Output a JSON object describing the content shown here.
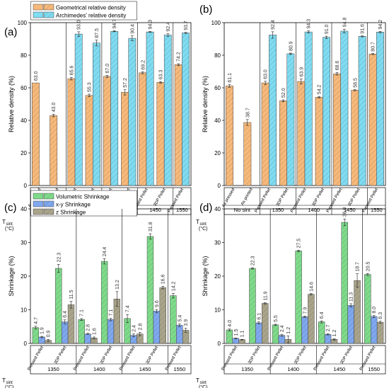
{
  "figure": {
    "panels": [
      {
        "letter": "(a)"
      },
      {
        "letter": "(b)"
      },
      {
        "letter": "(c)"
      },
      {
        "letter": "(d)"
      }
    ],
    "tsint_label": "T",
    "tsint_sub": "sint",
    "tsint_unit": "(°C)"
  },
  "colors": {
    "orange": "#F7B97A",
    "cyan": "#7FDCF2",
    "green": "#7EDB8A",
    "blue": "#7FA8F0",
    "khaki": "#A9A48A"
  },
  "chart_data": [
    {
      "type": "bar",
      "panel": "(a)",
      "ylabel": "Relative density (%)",
      "ylim": [
        0,
        100
      ],
      "yticks": [
        0,
        20,
        40,
        60,
        80,
        100
      ],
      "categories": [
        "As pressed",
        "As printed",
        "Pressed Pellet",
        "3DP Pellet",
        "Pressed Pellet",
        "3DP Pellet",
        "Pressed Pellet",
        "3DP Pellet",
        "Pressed Pellet"
      ],
      "groups": [
        {
          "label": "No sint",
          "span": 2
        },
        {
          "label": "1350",
          "span": 2
        },
        {
          "label": "1400",
          "span": 2
        },
        {
          "label": "1450",
          "span": 2
        },
        {
          "label": "1550",
          "span": 1
        }
      ],
      "series": [
        {
          "name": "Geometrical relative density",
          "color": "orange",
          "values": [
            63.0,
            43.0,
            65.6,
            55.3,
            67.0,
            57.2,
            69.2,
            63.3,
            74.2
          ],
          "errors": [
            0,
            0.8,
            0.8,
            0.8,
            0.6,
            1.6,
            0.6,
            0.5,
            0.6
          ]
        },
        {
          "name": "Archimedes' relative density",
          "color": "cyan",
          "values": [
            null,
            null,
            93.0,
            87.5,
            94.7,
            90.4,
            94.3,
            92.4,
            93.7
          ],
          "errors": [
            0,
            0,
            1.4,
            1.8,
            0.3,
            1.5,
            0.3,
            0.8,
            0.3
          ]
        }
      ],
      "value_labels": [
        [
          "63.0",
          "43.0",
          "65.6",
          "55.3",
          "67.0",
          "57.2",
          "69.2",
          "63.3",
          "74.2"
        ],
        [
          null,
          null,
          "93.0",
          "87.5",
          "94.7",
          "90.4",
          "94.3",
          "92.4",
          "93.7"
        ]
      ]
    },
    {
      "type": "bar",
      "panel": "(b)",
      "ylabel": "Relative density (%)",
      "ylim": [
        0,
        100
      ],
      "yticks": [
        0,
        20,
        40,
        60,
        80,
        100
      ],
      "categories": [
        "As pressed",
        "As printed",
        "Pressed Pellet",
        "3DP Pellet",
        "Pressed Pellet",
        "3DP Pellet",
        "Pressed Pellet",
        "3DP Pellet",
        "Pressed Pellet"
      ],
      "groups": [
        {
          "label": "No sint",
          "span": 2
        },
        {
          "label": "1350",
          "span": 2
        },
        {
          "label": "1400",
          "span": 2
        },
        {
          "label": "1450",
          "span": 2
        },
        {
          "label": "1550",
          "span": 1
        }
      ],
      "series": [
        {
          "name": "Geometrical relative density",
          "color": "orange",
          "values": [
            61.1,
            38.7,
            63.0,
            52.0,
            63.9,
            54.2,
            68.6,
            58.5,
            80.7
          ],
          "errors": [
            0.8,
            1.8,
            1.0,
            0.6,
            1.6,
            0.5,
            0.8,
            0.3,
            0.3
          ]
        },
        {
          "name": "Archimedes' relative density",
          "color": "cyan",
          "values": [
            null,
            null,
            92.4,
            80.9,
            94.3,
            91.0,
            94.8,
            91.6,
            94.2
          ],
          "errors": [
            0,
            0,
            2.0,
            0.4,
            0.7,
            0.7,
            1.2,
            0.3,
            0.4
          ]
        }
      ],
      "value_labels": [
        [
          "61.1",
          "38.7",
          "63.0",
          "52.0",
          "63.9",
          "54.2",
          "68.6",
          "58.5",
          "80.7"
        ],
        [
          null,
          null,
          "92.4",
          "80.9",
          "94.3",
          "91.0",
          "94.8",
          "91.6",
          "94.2"
        ]
      ]
    },
    {
      "type": "bar",
      "panel": "(c)",
      "ylabel": "Shrinkage (%)",
      "ylim": [
        0,
        40
      ],
      "yticks": [
        0,
        10,
        20,
        30,
        40
      ],
      "categories": [
        "Pressed Pellet",
        "3DP Pellet",
        "Pressed Pellet",
        "3DP Pellet",
        "Pressed Pellet",
        "3DP Pellet",
        "Pressed Pellet"
      ],
      "groups": [
        {
          "label": "1350",
          "span": 2
        },
        {
          "label": "1400",
          "span": 2
        },
        {
          "label": "1450",
          "span": 2
        },
        {
          "label": "1550",
          "span": 1
        }
      ],
      "series": [
        {
          "name": "Volumetric Shrinkage",
          "color": "green",
          "values": [
            4.7,
            22.3,
            7.1,
            24.4,
            7.4,
            31.8,
            14.2
          ],
          "errors": [
            0.4,
            1.2,
            0.3,
            0.8,
            1.2,
            0.8,
            0.7
          ]
        },
        {
          "name": "x-y Shrinkage",
          "color": "blue",
          "values": [
            1.9,
            6.4,
            2.8,
            7.1,
            2.4,
            9.6,
            5.4
          ],
          "errors": [
            0.2,
            0.6,
            0.2,
            0.4,
            0.4,
            0.5,
            0.4
          ]
        },
        {
          "name": "z Shrinkage",
          "color": "khaki",
          "values": [
            0.9,
            11.5,
            1.6,
            13.2,
            2.8,
            16.6,
            3.9
          ],
          "errors": [
            0.3,
            1.0,
            0.3,
            2.2,
            0.5,
            0.4,
            0.6
          ]
        }
      ],
      "value_labels": [
        [
          "4.7",
          "22.3",
          "7.1",
          "24.4",
          "7.4",
          "31.8",
          "14.2"
        ],
        [
          "1.9",
          "6.4",
          "2.8",
          "7.1",
          "2.4",
          "9.6",
          "5.4"
        ],
        [
          "0.9",
          "11.5",
          "1.6",
          "13.2",
          "2.8",
          "16.6",
          "3.9"
        ]
      ]
    },
    {
      "type": "bar",
      "panel": "(d)",
      "ylabel": "Shrinkage (%)",
      "ylim": [
        0,
        40
      ],
      "yticks": [
        0,
        10,
        20,
        30,
        40
      ],
      "categories": [
        "Pressed Pellet",
        "3DP Pellet",
        "Pressed Pellet",
        "3DP Pellet",
        "Pressed Pellet",
        "3DP Pellet",
        "Pressed Pellet"
      ],
      "groups": [
        {
          "label": "1350",
          "span": 2
        },
        {
          "label": "1400",
          "span": 2
        },
        {
          "label": "1450",
          "span": 2
        },
        {
          "label": "1550",
          "span": 1
        }
      ],
      "series": [
        {
          "name": "Volumetric Shrinkage",
          "color": "green",
          "values": [
            4.0,
            22.3,
            5.5,
            27.5,
            6.4,
            36.0,
            20.5
          ],
          "errors": [
            0.3,
            0.2,
            0.2,
            0.2,
            0.3,
            1.0,
            0.3
          ]
        },
        {
          "name": "x-y Shrinkage",
          "color": "blue",
          "values": [
            1.5,
            6.1,
            2.4,
            7.9,
            2.7,
            11.3,
            8.0
          ],
          "errors": [
            0.1,
            0.3,
            0.3,
            0.2,
            0.2,
            0.5,
            0.3
          ]
        },
        {
          "name": "z Shrinkage",
          "color": "khaki",
          "values": [
            1.1,
            11.9,
            1.2,
            14.6,
            1.2,
            18.7,
            6.3
          ],
          "errors": [
            0.1,
            0.2,
            1.0,
            0.2,
            0.2,
            2.0,
            0.3
          ]
        }
      ],
      "value_labels": [
        [
          "4.0",
          "22.3",
          "5.5",
          "27.5",
          "6.4",
          "36.0",
          "20.5"
        ],
        [
          "1.5",
          "6.1",
          "2.4",
          "7.9",
          "2.7",
          "11.3",
          "8.0"
        ],
        [
          "1.1",
          "11.9",
          "1.2",
          "14.6",
          "1.2",
          "18.7",
          "6.3"
        ]
      ]
    }
  ]
}
